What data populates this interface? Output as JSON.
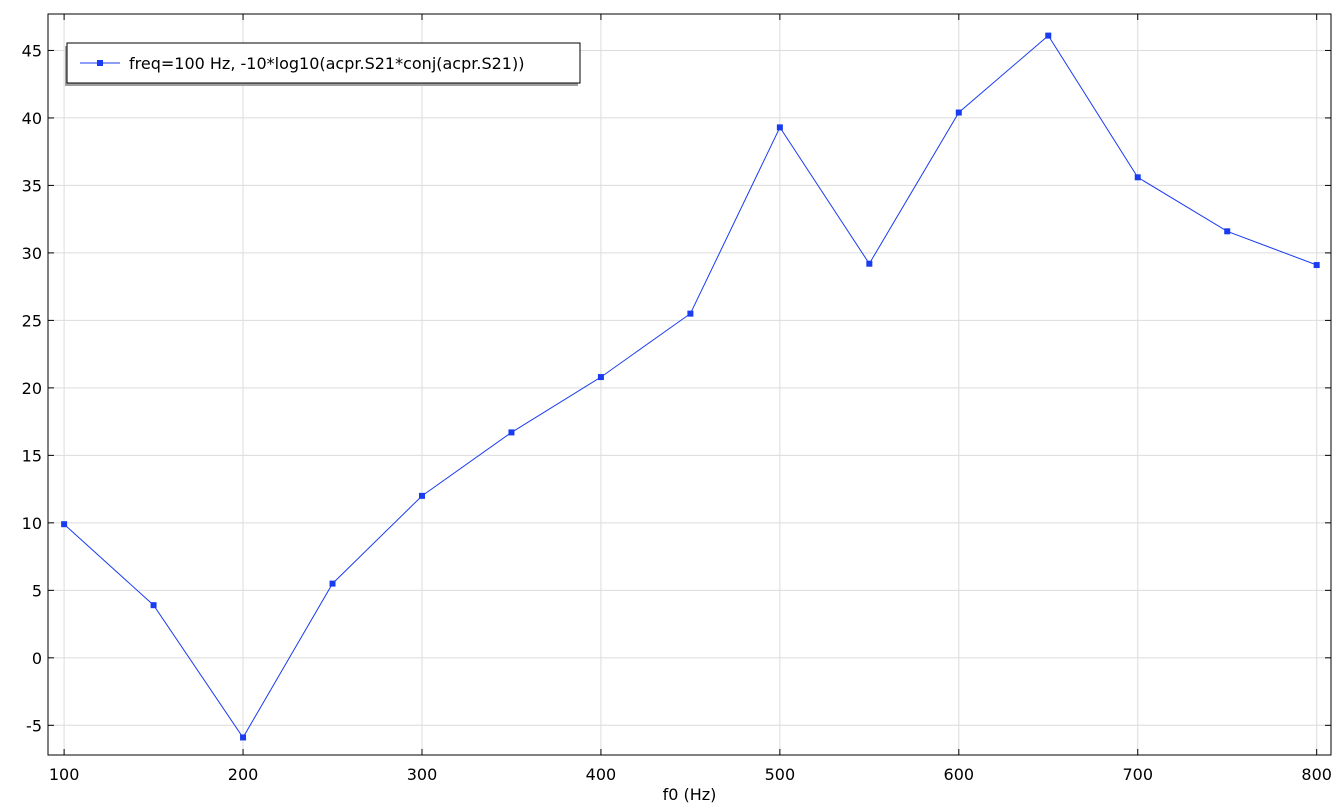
{
  "chart_data": {
    "type": "line",
    "title": "",
    "xlabel": "f0 (Hz)",
    "ylabel": "",
    "xlim": [
      91,
      808
    ],
    "ylim": [
      -7.2,
      47.7
    ],
    "x_ticks": [
      100,
      200,
      300,
      400,
      500,
      600,
      700,
      800
    ],
    "y_ticks": [
      -5,
      0,
      5,
      10,
      15,
      20,
      25,
      30,
      35,
      40,
      45
    ],
    "grid": true,
    "legend_position": "top-left",
    "series": [
      {
        "name": "freq=100 Hz, -10*log10(acpr.S21*conj(acpr.S21))",
        "color": "#1a3cf0",
        "marker": "square",
        "x": [
          100,
          150,
          200,
          250,
          300,
          350,
          400,
          450,
          500,
          550,
          600,
          650,
          700,
          750,
          800
        ],
        "y": [
          9.9,
          3.9,
          -5.9,
          5.5,
          12.0,
          16.7,
          20.8,
          25.5,
          39.3,
          29.2,
          40.4,
          46.1,
          35.6,
          31.6,
          29.1
        ]
      }
    ]
  }
}
